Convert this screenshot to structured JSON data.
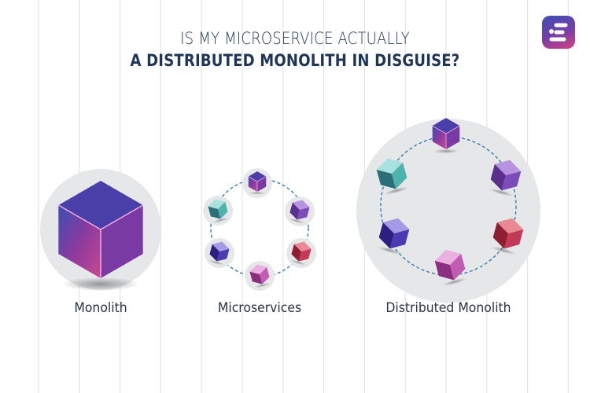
{
  "title": {
    "line1": "IS MY MICROSERVICE ACTUALLY",
    "line2": "A DISTRIBUTED MONOLITH IN DISGUISE?"
  },
  "logo": {
    "icon": "brand-logo-icon",
    "gradient": [
      "#3a4fb5",
      "#d8407f"
    ]
  },
  "sections": [
    {
      "label": "Monolith",
      "cubes": [
        {
          "color": "magenta-blue"
        }
      ]
    },
    {
      "label": "Microservices",
      "cubes": [
        {
          "color": "magenta-blue"
        },
        {
          "color": "violet"
        },
        {
          "color": "red"
        },
        {
          "color": "pink"
        },
        {
          "color": "indigo"
        },
        {
          "color": "teal"
        }
      ]
    },
    {
      "label": "Distributed Monolith",
      "cubes": [
        {
          "color": "magenta-blue"
        },
        {
          "color": "violet"
        },
        {
          "color": "red"
        },
        {
          "color": "pink"
        },
        {
          "color": "indigo"
        },
        {
          "color": "teal"
        }
      ]
    }
  ],
  "colors": {
    "title": "#1f3557",
    "circle": "#e6e7e9",
    "dashed_ring": "#2f7fb5",
    "grid_lines": "#e4e4e4"
  }
}
